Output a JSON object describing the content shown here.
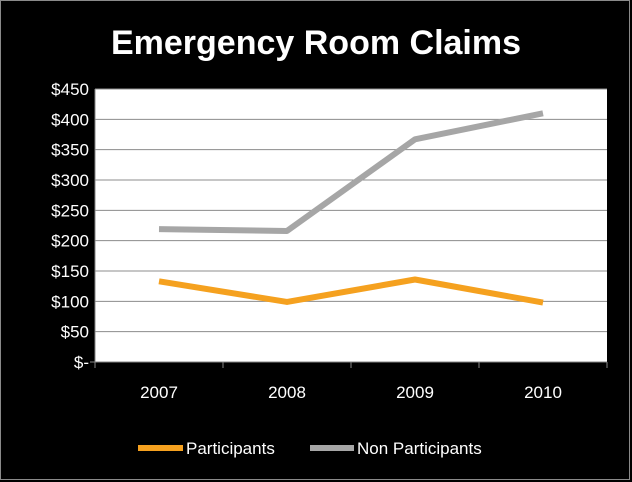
{
  "chart_data": {
    "type": "line",
    "title": "Emergency Room Claims",
    "categories": [
      "2007",
      "2008",
      "2009",
      "2010"
    ],
    "series": [
      {
        "name": "Participants",
        "values": [
          133,
          99,
          136,
          98
        ],
        "color": "#F5A11F"
      },
      {
        "name": "Non Participants",
        "values": [
          219,
          216,
          367,
          410
        ],
        "color": "#A6A6A6"
      }
    ],
    "y_ticks": [
      {
        "value": 0,
        "label": "$-"
      },
      {
        "value": 50,
        "label": "$50"
      },
      {
        "value": 100,
        "label": "$100"
      },
      {
        "value": 150,
        "label": "$150"
      },
      {
        "value": 200,
        "label": "$200"
      },
      {
        "value": 250,
        "label": "$250"
      },
      {
        "value": 300,
        "label": "$300"
      },
      {
        "value": 350,
        "label": "$350"
      },
      {
        "value": 400,
        "label": "$400"
      },
      {
        "value": 450,
        "label": "$450"
      }
    ],
    "ylim": [
      0,
      450
    ],
    "grid": true,
    "legend_position": "bottom",
    "colors": {
      "background": "#000000",
      "plot_background": "#FFFFFF",
      "gridline": "#8C8C8C",
      "text": "#FFFFFF"
    }
  }
}
